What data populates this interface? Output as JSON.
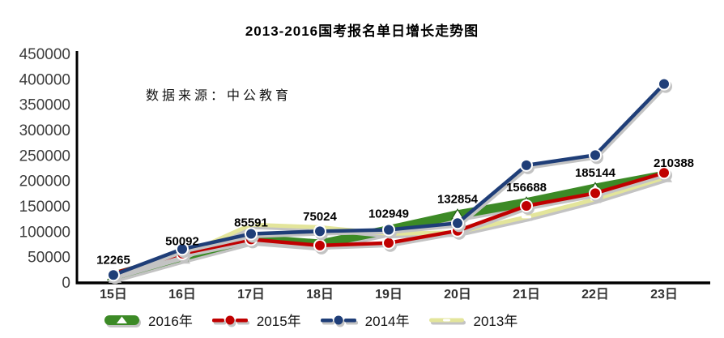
{
  "title": "2013-2016国考报名单日增长走势图",
  "source_note": "数据来源：中公教育",
  "chart_data": {
    "type": "line",
    "categories": [
      "15日",
      "16日",
      "17日",
      "18日",
      "19日",
      "20日",
      "21日",
      "22日",
      "23日"
    ],
    "series": [
      {
        "name": "2016年",
        "color": "#3C8A26",
        "marker": "triangle",
        "line_width": 11,
        "values": [
          12265,
          50092,
          85591,
          75024,
          102949,
          132854,
          156688,
          185144,
          210388
        ]
      },
      {
        "name": "2015年",
        "color": "#C00000",
        "marker": "circle",
        "line_width": 4.5,
        "values": [
          17000,
          56000,
          84000,
          72000,
          77000,
          101000,
          150000,
          175000,
          215000
        ]
      },
      {
        "name": "2014年",
        "color": "#1F3E78",
        "marker": "circle",
        "line_width": 4.5,
        "values": [
          14000,
          65000,
          95000,
          100000,
          103000,
          116000,
          230000,
          250000,
          390000
        ]
      },
      {
        "name": "2013年",
        "color": "#E3E59B",
        "marker": "dash",
        "line_width": 5,
        "values": [
          13000,
          52000,
          113000,
          108000,
          95000,
          98000,
          128000,
          163000,
          205000
        ]
      }
    ],
    "data_labels": [
      "12265",
      "50092",
      "85591",
      "75024",
      "102949",
      "132854",
      "156688",
      "185144",
      "210388"
    ],
    "data_label_series": "2016年",
    "ylim": [
      0,
      450000
    ],
    "y_tick_step": 50000,
    "y_ticks": [
      "0",
      "50000",
      "100000",
      "150000",
      "200000",
      "250000",
      "300000",
      "350000",
      "400000",
      "450000"
    ],
    "grid": false,
    "legend_position": "bottom",
    "draw_order": [
      0,
      3,
      1,
      2
    ],
    "label_dy": [
      -15,
      -14,
      -15,
      -29,
      -15,
      -14,
      -14,
      -14,
      -10
    ],
    "label_dx": [
      0,
      0,
      0,
      0,
      0,
      0,
      0,
      0,
      12
    ],
    "axis_color": "#000000",
    "shadow_color": "#c3c3c3"
  }
}
